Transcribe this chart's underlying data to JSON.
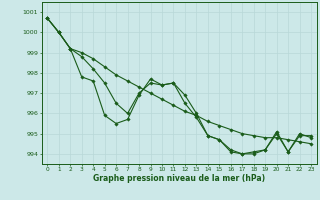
{
  "background_color": "#cce8e8",
  "grid_color": "#b8d8d8",
  "line_color": "#1a5c1a",
  "marker_color": "#1a5c1a",
  "xlabel": "Graphe pression niveau de la mer (hPa)",
  "xlim": [
    -0.5,
    23.5
  ],
  "ylim": [
    993.5,
    1001.5
  ],
  "yticks": [
    994,
    995,
    996,
    997,
    998,
    999,
    1000,
    1001
  ],
  "xticks": [
    0,
    1,
    2,
    3,
    4,
    5,
    6,
    7,
    8,
    9,
    10,
    11,
    12,
    13,
    14,
    15,
    16,
    17,
    18,
    19,
    20,
    21,
    22,
    23
  ],
  "line1_x": [
    0,
    1,
    2,
    3,
    4,
    5,
    6,
    7,
    8,
    9,
    10,
    11,
    12,
    13,
    14,
    15,
    16,
    17,
    18,
    19,
    20,
    21,
    22,
    23
  ],
  "line1_y": [
    1000.7,
    1000.0,
    999.2,
    997.8,
    997.6,
    995.9,
    995.5,
    995.7,
    996.9,
    997.7,
    997.4,
    997.5,
    996.9,
    996.0,
    994.9,
    994.7,
    994.1,
    994.0,
    994.0,
    994.2,
    995.0,
    994.1,
    994.9,
    994.9
  ],
  "line2_x": [
    0,
    1,
    2,
    3,
    4,
    5,
    6,
    7,
    8,
    9,
    10,
    11,
    12,
    13,
    14,
    15,
    16,
    17,
    18,
    19,
    20,
    21,
    22,
    23
  ],
  "line2_y": [
    1000.7,
    1000.0,
    999.2,
    998.8,
    998.2,
    997.5,
    996.5,
    996.0,
    997.0,
    997.5,
    997.4,
    997.5,
    996.5,
    995.8,
    994.9,
    994.7,
    994.2,
    994.0,
    994.1,
    994.2,
    995.1,
    994.1,
    995.0,
    994.8
  ],
  "line3_x": [
    0,
    1,
    2,
    3,
    4,
    5,
    6,
    7,
    8,
    9,
    10,
    11,
    12,
    13,
    14,
    15,
    16,
    17,
    18,
    19,
    20,
    21,
    22,
    23
  ],
  "line3_y": [
    1000.7,
    1000.0,
    999.2,
    999.0,
    998.7,
    998.3,
    997.9,
    997.6,
    997.3,
    997.0,
    996.7,
    996.4,
    996.1,
    995.9,
    995.6,
    995.4,
    995.2,
    995.0,
    994.9,
    994.8,
    994.8,
    994.7,
    994.6,
    994.5
  ]
}
